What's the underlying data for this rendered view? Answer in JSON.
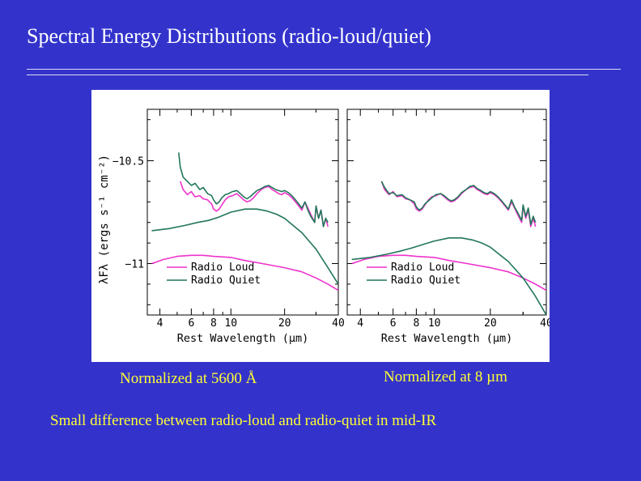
{
  "slide": {
    "title": "Spectral Energy Distributions (radio-loud/quiet)",
    "caption_left": "Normalized at 5600 Å",
    "caption_right": "Normalized at 8 µm",
    "footer": "Small difference between radio-loud and radio-quiet in mid-IR"
  },
  "colors": {
    "background": "#3333cc",
    "title_text": "#ffffff",
    "caption_text": "#ffff33",
    "radio_loud": "#ee33cc",
    "radio_quiet": "#22775a"
  },
  "chart_data": [
    {
      "type": "line",
      "panel": "left",
      "xlabel": "Rest Wavelength (μm)",
      "ylabel": "λFλ (ergs s⁻¹ cm⁻²)",
      "xscale": "log",
      "xlim": [
        3.4,
        40
      ],
      "ylim": [
        -11.25,
        -10.25
      ],
      "xticks": [
        4,
        6,
        8,
        10,
        20,
        40
      ],
      "yticks": [
        -10.5,
        -11
      ],
      "ytick_labels": [
        "−10.5",
        "−11"
      ],
      "legend": [
        "Radio Loud",
        "Radio Quiet"
      ],
      "legend_position": "bottom-left",
      "series": [
        {
          "name": "Radio Loud continuum",
          "color": "#ee33cc",
          "x": [
            3.6,
            4.2,
            5,
            6,
            7,
            8,
            10,
            12,
            15,
            20,
            25,
            30,
            35,
            40
          ],
          "y": [
            -11.0,
            -10.98,
            -10.965,
            -10.96,
            -10.96,
            -10.965,
            -10.97,
            -10.985,
            -11.0,
            -11.02,
            -11.04,
            -11.07,
            -11.1,
            -11.13
          ]
        },
        {
          "name": "Radio Quiet continuum",
          "color": "#22775a",
          "x": [
            3.6,
            4.5,
            5.5,
            6.5,
            7.5,
            8.5,
            10,
            12,
            14,
            16,
            18,
            20,
            25,
            30,
            35,
            40
          ],
          "y": [
            -10.84,
            -10.83,
            -10.815,
            -10.8,
            -10.79,
            -10.775,
            -10.75,
            -10.735,
            -10.735,
            -10.745,
            -10.76,
            -10.78,
            -10.85,
            -10.93,
            -11.02,
            -11.1
          ]
        },
        {
          "name": "Radio Loud spectrum",
          "color": "#ee33cc",
          "x": [
            5.2,
            5.4,
            5.7,
            6,
            6.3,
            6.7,
            7,
            7.4,
            7.8,
            8,
            8.3,
            8.6,
            8.9,
            9.3,
            9.7,
            10.2,
            10.8,
            11.3,
            11.8,
            12.3,
            12.8,
            13.4,
            14,
            14.8,
            15.5,
            16.3,
            17,
            17.8,
            18.5,
            19.3,
            20,
            21,
            22,
            23,
            24,
            25,
            26,
            27,
            28,
            29.5,
            30,
            31,
            32,
            33,
            34,
            35
          ],
          "y": [
            -10.6,
            -10.64,
            -10.665,
            -10.65,
            -10.675,
            -10.67,
            -10.685,
            -10.69,
            -10.71,
            -10.735,
            -10.745,
            -10.735,
            -10.715,
            -10.69,
            -10.675,
            -10.67,
            -10.66,
            -10.675,
            -10.69,
            -10.7,
            -10.695,
            -10.68,
            -10.66,
            -10.64,
            -10.63,
            -10.625,
            -10.64,
            -10.65,
            -10.66,
            -10.665,
            -10.655,
            -10.665,
            -10.68,
            -10.7,
            -10.72,
            -10.74,
            -10.7,
            -10.73,
            -10.76,
            -10.8,
            -10.72,
            -10.78,
            -10.74,
            -10.82,
            -10.78,
            -10.82
          ]
        },
        {
          "name": "Radio Quiet spectrum",
          "color": "#22775a",
          "x": [
            5.1,
            5.2,
            5.4,
            5.7,
            6,
            6.3,
            6.7,
            7,
            7.4,
            7.8,
            8,
            8.3,
            8.6,
            8.9,
            9.3,
            9.7,
            10.2,
            10.8,
            11.3,
            11.8,
            12.3,
            12.8,
            13.4,
            14,
            14.8,
            15.5,
            16.3,
            17,
            17.8,
            18.5,
            19.3,
            20,
            21,
            22,
            23,
            24,
            25,
            26,
            27,
            28,
            29.5,
            30,
            31,
            32,
            33,
            34,
            35
          ],
          "y": [
            -10.46,
            -10.53,
            -10.58,
            -10.6,
            -10.62,
            -10.61,
            -10.64,
            -10.63,
            -10.66,
            -10.67,
            -10.69,
            -10.71,
            -10.7,
            -10.68,
            -10.665,
            -10.66,
            -10.65,
            -10.645,
            -10.66,
            -10.675,
            -10.685,
            -10.675,
            -10.66,
            -10.645,
            -10.635,
            -10.625,
            -10.62,
            -10.63,
            -10.64,
            -10.645,
            -10.65,
            -10.645,
            -10.655,
            -10.67,
            -10.69,
            -10.71,
            -10.73,
            -10.7,
            -10.74,
            -10.77,
            -10.8,
            -10.72,
            -10.78,
            -10.74,
            -10.82,
            -10.78,
            -10.8
          ]
        }
      ]
    },
    {
      "type": "line",
      "panel": "right",
      "xlabel": "Rest Wavelength (μm)",
      "xscale": "log",
      "xlim": [
        3.4,
        40
      ],
      "ylim": [
        -11.25,
        -10.25
      ],
      "xticks": [
        4,
        6,
        8,
        10,
        20,
        40
      ],
      "legend": [
        "Radio Loud",
        "Radio Quiet"
      ],
      "legend_position": "bottom-left",
      "series": [
        {
          "name": "Radio Loud continuum",
          "color": "#ee33cc",
          "x": [
            3.6,
            4.2,
            5,
            6,
            7,
            8,
            10,
            12,
            15,
            20,
            25,
            30,
            35,
            40
          ],
          "y": [
            -11.0,
            -10.98,
            -10.965,
            -10.96,
            -10.96,
            -10.965,
            -10.97,
            -10.985,
            -11.0,
            -11.02,
            -11.04,
            -11.07,
            -11.1,
            -11.13
          ]
        },
        {
          "name": "Radio Quiet continuum",
          "color": "#22775a",
          "x": [
            3.6,
            4.5,
            5.5,
            6.5,
            7.5,
            8.5,
            10,
            12,
            14,
            16,
            18,
            20,
            25,
            30,
            35,
            40
          ],
          "y": [
            -10.98,
            -10.97,
            -10.955,
            -10.94,
            -10.925,
            -10.91,
            -10.89,
            -10.875,
            -10.875,
            -10.885,
            -10.9,
            -10.92,
            -10.99,
            -11.07,
            -11.16,
            -11.25
          ]
        },
        {
          "name": "Radio Loud spectrum",
          "color": "#ee33cc",
          "x": [
            5.2,
            5.4,
            5.7,
            6,
            6.3,
            6.7,
            7,
            7.4,
            7.8,
            8,
            8.3,
            8.6,
            8.9,
            9.3,
            9.7,
            10.2,
            10.8,
            11.3,
            11.8,
            12.3,
            12.8,
            13.4,
            14,
            14.8,
            15.5,
            16.3,
            17,
            17.8,
            18.5,
            19.3,
            20,
            21,
            22,
            23,
            24,
            25,
            26,
            27,
            28,
            29.5,
            30,
            31,
            32,
            33,
            34,
            35
          ],
          "y": [
            -10.6,
            -10.64,
            -10.665,
            -10.65,
            -10.675,
            -10.67,
            -10.685,
            -10.69,
            -10.71,
            -10.735,
            -10.745,
            -10.735,
            -10.715,
            -10.69,
            -10.675,
            -10.67,
            -10.66,
            -10.675,
            -10.69,
            -10.7,
            -10.695,
            -10.68,
            -10.66,
            -10.64,
            -10.63,
            -10.625,
            -10.64,
            -10.65,
            -10.66,
            -10.665,
            -10.655,
            -10.665,
            -10.68,
            -10.7,
            -10.72,
            -10.74,
            -10.7,
            -10.73,
            -10.76,
            -10.8,
            -10.72,
            -10.78,
            -10.74,
            -10.82,
            -10.78,
            -10.82
          ]
        },
        {
          "name": "Radio Quiet spectrum",
          "color": "#22775a",
          "x": [
            5.2,
            5.4,
            5.7,
            6,
            6.3,
            6.7,
            7,
            7.4,
            7.8,
            8,
            8.3,
            8.6,
            8.9,
            9.3,
            9.7,
            10.2,
            10.8,
            11.3,
            11.8,
            12.3,
            12.8,
            13.4,
            14,
            14.8,
            15.5,
            16.3,
            17,
            17.8,
            18.5,
            19.3,
            20,
            21,
            22,
            23,
            24,
            25,
            26,
            27,
            28,
            29.5,
            30,
            31,
            32,
            33,
            34,
            35
          ],
          "y": [
            -10.6,
            -10.63,
            -10.66,
            -10.655,
            -10.67,
            -10.665,
            -10.68,
            -10.69,
            -10.7,
            -10.725,
            -10.74,
            -10.73,
            -10.71,
            -10.695,
            -10.68,
            -10.665,
            -10.66,
            -10.67,
            -10.685,
            -10.695,
            -10.69,
            -10.675,
            -10.655,
            -10.64,
            -10.625,
            -10.62,
            -10.635,
            -10.645,
            -10.655,
            -10.66,
            -10.65,
            -10.66,
            -10.675,
            -10.695,
            -10.715,
            -10.735,
            -10.69,
            -10.725,
            -10.75,
            -10.79,
            -10.715,
            -10.77,
            -10.73,
            -10.81,
            -10.77,
            -10.8
          ]
        }
      ]
    }
  ]
}
